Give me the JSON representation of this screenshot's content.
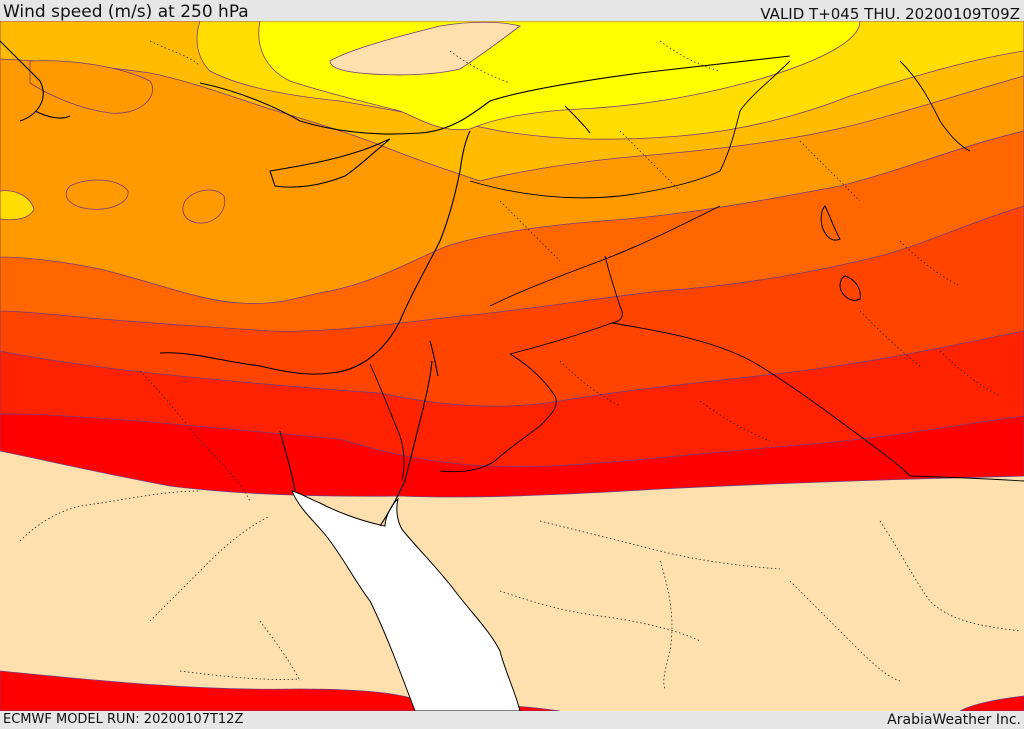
{
  "header": {
    "title": "Wind speed (m/s) at 250 hPa",
    "valid_time": "VALID T+045 THU. 20200109T09Z"
  },
  "footer": {
    "model_run": "ECMWF MODEL RUN: 20200107T12Z",
    "credit": "ArabiaWeather Inc."
  },
  "map": {
    "variable": "wind speed",
    "level": "250 hPa",
    "region": "Eastern Mediterranean / Levant / Red Sea",
    "colors": {
      "lowest": "#fde0ad",
      "yellow": "#ffff00",
      "gold": "#ffdd00",
      "amber": "#ffbb00",
      "orange": "#ff9900",
      "dark_orange": "#ff6600",
      "red_orange": "#ff4400",
      "orange_red": "#ff2200",
      "red": "#ff0000",
      "sea_low": "#ffffff"
    }
  }
}
